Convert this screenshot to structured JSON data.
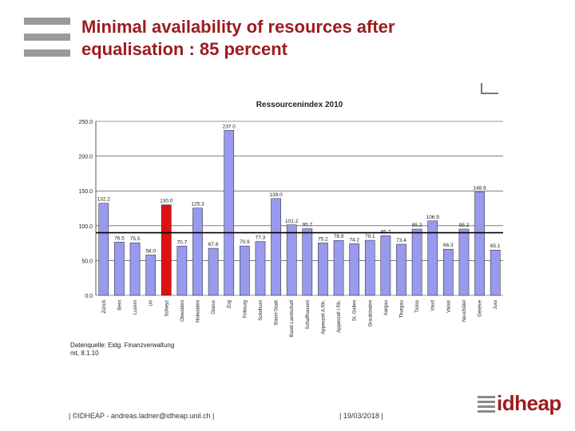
{
  "slide": {
    "title_line1": "Minimal availability of resources after",
    "title_line2": "equalisation : 85 percent",
    "source_line1": "Datenquelle: Eidg. Finanzverwaltung",
    "source_line2": "mt, 8.1.10",
    "footer_left": "| ©IDHEAP - andreas.ladner@idheap.unil.ch |",
    "footer_date": "| 19/03/2018 |",
    "logo_text": "idheap"
  },
  "colors": {
    "title": "#9b1c20",
    "bar": "#9999ee",
    "bar_highlight": "#dd1111",
    "reference_line": "#000000"
  },
  "chart_data": {
    "type": "bar",
    "title": "Ressourcenindex 2010",
    "categories": [
      "Zürich",
      "Bern",
      "Luzern",
      "Uri",
      "Schwyz",
      "Obwalden",
      "Nidwalden",
      "Glarus",
      "Zug",
      "Fribourg",
      "Solothurn",
      "Basel-Stadt",
      "Basel-Landschaft",
      "Schaffhausen",
      "Appenzell A.Rh.",
      "Appenzell I.Rh.",
      "St. Gallen",
      "Graubünden",
      "Aargau",
      "Thurgau",
      "Ticino",
      "Vaud",
      "Valais",
      "Neuchâtel",
      "Genève",
      "Jura"
    ],
    "values": [
      132.2,
      76.5,
      75.5,
      58.0,
      130.0,
      70.7,
      125.3,
      67.6,
      237.0,
      70.9,
      77.3,
      139.0,
      101.2,
      95.7,
      75.2,
      78.9,
      74.2,
      79.1,
      85.7,
      73.4,
      95.2,
      106.9,
      66.3,
      95.2,
      148.6,
      65.1
    ],
    "value_labels": [
      "132.2",
      "76.5",
      "75.5",
      "58.0",
      "130.0",
      "70.7",
      "125.3",
      "67.6",
      "237.0",
      "70.9",
      "77.3",
      "139.0",
      "101.2",
      "95.7",
      "75.2",
      "78.9",
      "74.2",
      "79.1",
      "85.7",
      "73.4",
      "95.2",
      "106.9",
      "66.3",
      "95.2",
      "148.6",
      "65.1"
    ],
    "highlight_index": 4,
    "reference_line": 90,
    "yticks": [
      "250.0",
      "200.0",
      "150.0",
      "100.0",
      "50.0",
      "0.0"
    ],
    "ylim": [
      0,
      250
    ],
    "xlabel": "",
    "ylabel": "",
    "grid": true
  }
}
